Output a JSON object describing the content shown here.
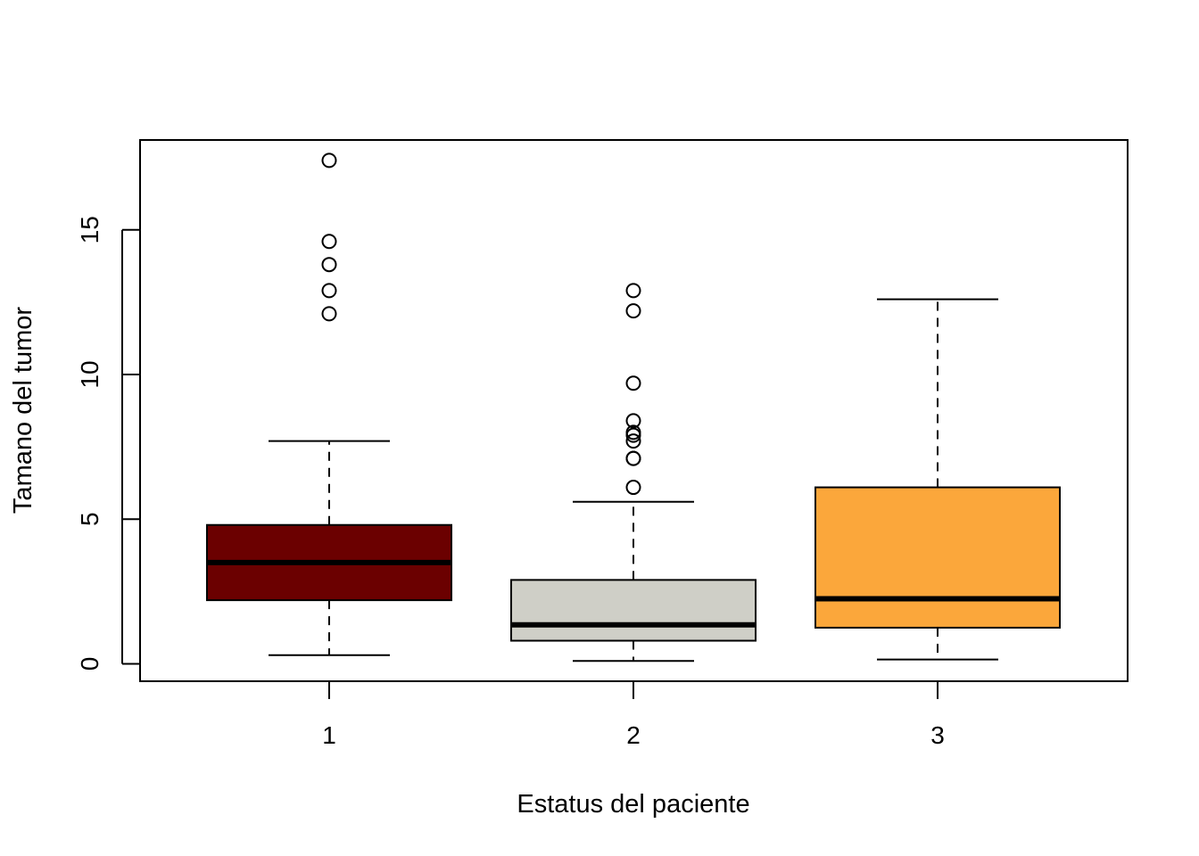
{
  "chart_data": {
    "type": "boxplot",
    "title": "",
    "xlabel": "Estatus del paciente",
    "ylabel": "Tamano del tumor",
    "ylim": [
      -0.6,
      18.1
    ],
    "y_ticks": [
      0,
      5,
      10,
      15
    ],
    "categories": [
      "1",
      "2",
      "3"
    ],
    "grid": false,
    "legend": "none",
    "boxes": [
      {
        "name": "1",
        "color": "#6b0000",
        "whisker_low": 0.3,
        "q1": 2.2,
        "median": 3.5,
        "q3": 4.8,
        "whisker_high": 7.7,
        "outliers": [
          12.1,
          12.9,
          13.8,
          14.6,
          17.4
        ]
      },
      {
        "name": "2",
        "color": "#cfcfc7",
        "whisker_low": 0.1,
        "q1": 0.8,
        "median": 1.35,
        "q3": 2.9,
        "whisker_high": 5.6,
        "outliers": [
          6.1,
          7.1,
          7.1,
          7.7,
          7.9,
          8.0,
          8.4,
          9.7,
          12.2,
          12.9
        ]
      },
      {
        "name": "3",
        "color": "#fba73b",
        "whisker_low": 0.15,
        "q1": 1.25,
        "median": 2.25,
        "q3": 6.1,
        "whisker_high": 12.6,
        "outliers": []
      }
    ]
  }
}
